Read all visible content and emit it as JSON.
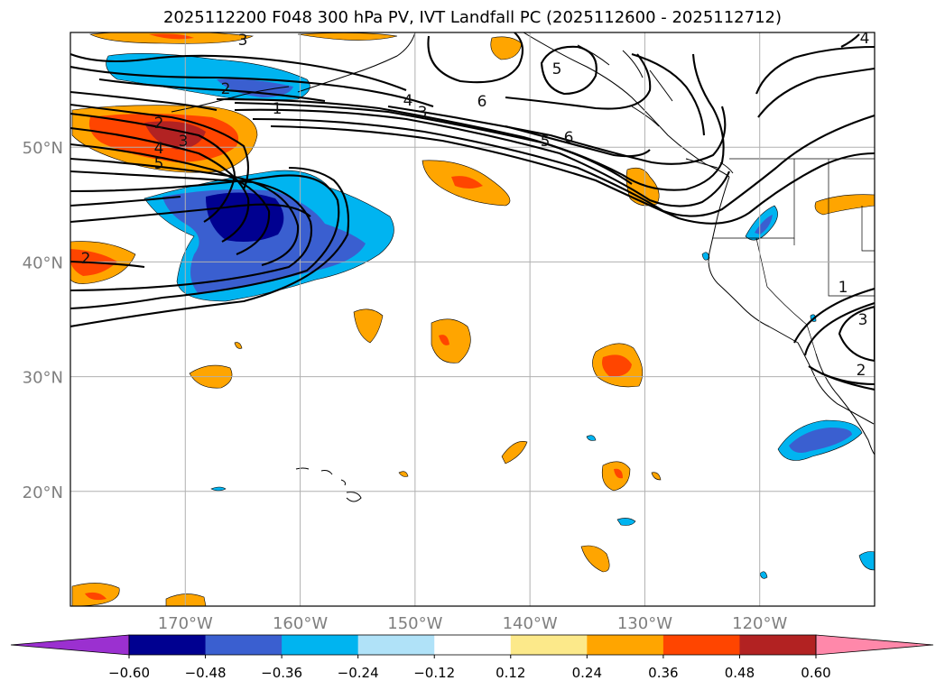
{
  "title": "2025112200 F048 300 hPa PV, IVT Landfall PC (2025112600 - 2025112712)",
  "map": {
    "projection": "PlateCarree",
    "lon_range": [
      -180,
      -110
    ],
    "lat_range": [
      10,
      60
    ],
    "lon_gridlines": [
      -170,
      -160,
      -150,
      -140,
      -130,
      -120
    ],
    "lat_gridlines": [
      20,
      30,
      40,
      50
    ],
    "lon_labels": [
      "170°W",
      "160°W",
      "150°W",
      "140°W",
      "130°W",
      "120°W"
    ],
    "lat_labels": [
      "20°N",
      "30°N",
      "40°N",
      "50°N"
    ],
    "contour_labels": [
      "3",
      "2",
      "1",
      "2",
      "3",
      "4",
      "5",
      "2",
      "4",
      "3",
      "6",
      "5",
      "6",
      "5",
      "4",
      "1",
      "3",
      "2"
    ]
  },
  "colorbar": {
    "levels": [
      -0.6,
      -0.48,
      -0.36,
      -0.24,
      -0.12,
      0.12,
      0.24,
      0.36,
      0.48,
      0.6
    ],
    "tick_labels": [
      "−0.60",
      "−0.48",
      "−0.36",
      "−0.24",
      "−0.12",
      "0.12",
      "0.24",
      "0.36",
      "0.48",
      "0.60"
    ],
    "colors": [
      "#9b30d0",
      "#000090",
      "#3a5fd0",
      "#00b4f0",
      "#b0e2f8",
      "#ffffff",
      "#fce98a",
      "#ffa500",
      "#ff4500",
      "#b22222",
      "#ff88aa"
    ]
  }
}
